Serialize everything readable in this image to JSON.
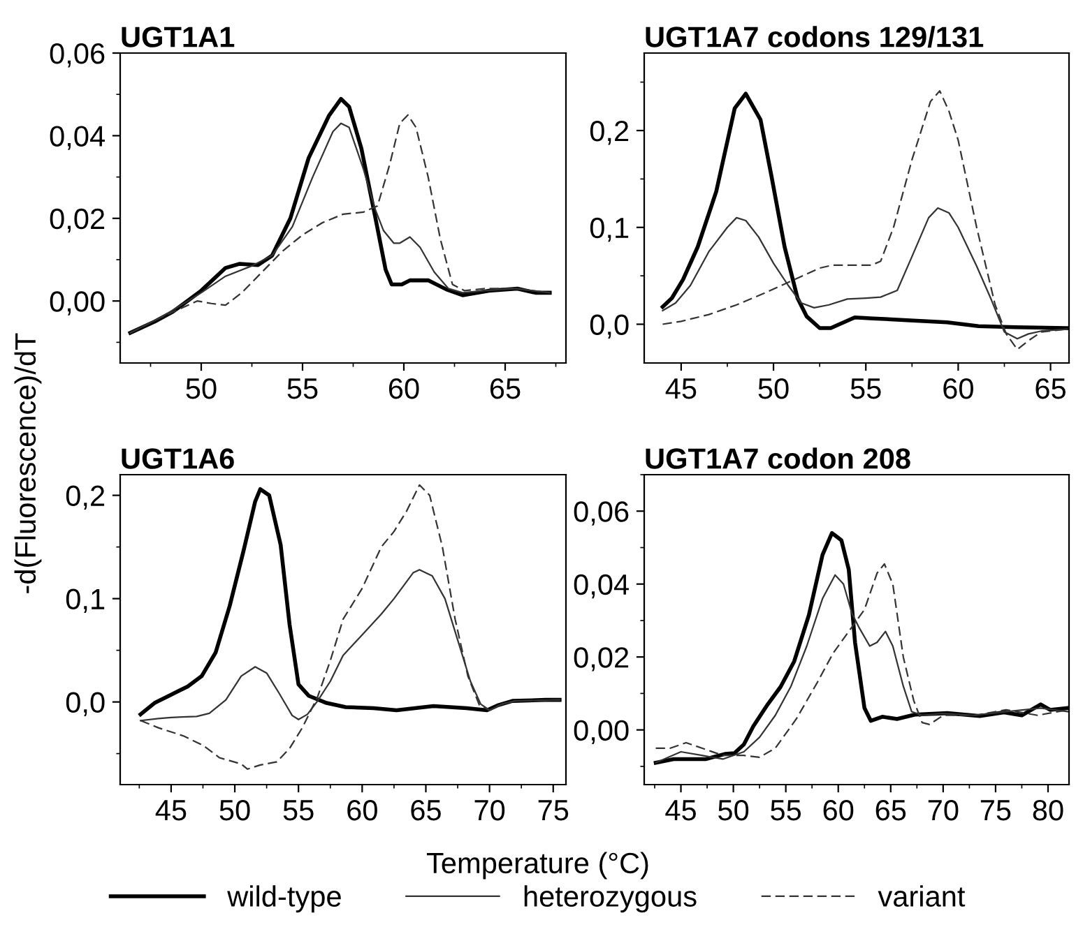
{
  "chart_data": [
    {
      "type": "line",
      "title": "UGT1A1",
      "ylabel": "-d(Fluorescence)/dT",
      "legend": "bottom",
      "grid": false,
      "marker": "none",
      "xlim": [
        46,
        68
      ],
      "xticks": [
        50,
        55,
        60,
        65
      ],
      "ylim": [
        -0.015,
        0.06
      ],
      "yticks": [
        {
          "value": 0,
          "label": "0,00"
        },
        {
          "value": 0.02,
          "label": "0,02"
        },
        {
          "value": 0.04,
          "label": "0,04"
        },
        {
          "value": 0.06,
          "label": "0,06"
        }
      ],
      "series": [
        {
          "name": "wild-type",
          "color": "#000000",
          "line_style": "solid",
          "x": [
            46.5,
            47.7,
            48.6,
            50,
            51.2,
            51.9,
            52.8,
            53.5,
            54.4,
            55.3,
            56.3,
            56.9,
            57.3,
            57.9,
            58.6,
            59.1,
            59.4,
            59.9,
            60.3,
            61.2,
            62.1,
            62.9,
            64.2,
            65.6,
            66.5,
            67.2
          ],
          "values": [
            -0.0077,
            -0.005,
            -0.0026,
            0.0025,
            0.008,
            0.009,
            0.0087,
            0.011,
            0.02,
            0.0346,
            0.0448,
            0.0489,
            0.047,
            0.037,
            0.02,
            0.0076,
            0.004,
            0.004,
            0.005,
            0.005,
            0.0028,
            0.0014,
            0.0025,
            0.003,
            0.002,
            0.002
          ]
        },
        {
          "name": "heterozygous",
          "color": "#333333",
          "line_style": "solid",
          "x": [
            46.5,
            48,
            50,
            51.2,
            52.5,
            53.5,
            54.5,
            55.5,
            56.5,
            56.9,
            57.3,
            58,
            58.6,
            59,
            59.5,
            59.8,
            60.3,
            60.8,
            61.5,
            62.2,
            62.9,
            64,
            65.5,
            67.2
          ],
          "values": [
            -0.0077,
            -0.004,
            0.002,
            0.006,
            0.0085,
            0.011,
            0.018,
            0.03,
            0.041,
            0.043,
            0.042,
            0.032,
            0.022,
            0.017,
            0.014,
            0.014,
            0.0155,
            0.013,
            0.007,
            0.003,
            0.002,
            0.0025,
            0.003,
            0.002
          ]
        },
        {
          "name": "variant",
          "color": "#333333",
          "line_style": "dashed",
          "x": [
            46.5,
            48,
            49.8,
            50.5,
            51.2,
            52,
            53,
            54,
            55,
            56,
            57,
            58,
            58.7,
            59.3,
            59.8,
            60.2,
            60.6,
            61.2,
            61.8,
            62.4,
            63,
            64,
            65.5,
            67.2
          ],
          "values": [
            -0.0077,
            -0.004,
            0,
            -0.0006,
            -0.001,
            0.002,
            0.007,
            0.012,
            0.016,
            0.019,
            0.021,
            0.0215,
            0.023,
            0.033,
            0.043,
            0.045,
            0.042,
            0.03,
            0.015,
            0.004,
            0.0025,
            0.003,
            0.003,
            0.002
          ]
        }
      ]
    },
    {
      "type": "line",
      "title": "UGT1A7 codons 129/131",
      "grid": false,
      "marker": "none",
      "xlim": [
        43,
        66
      ],
      "xticks": [
        45,
        50,
        55,
        60,
        65
      ],
      "ylim": [
        -0.04,
        0.28
      ],
      "yticks": [
        {
          "value": 0,
          "label": "0,0"
        },
        {
          "value": 0.1,
          "label": "0,1"
        },
        {
          "value": 0.2,
          "label": "0,2"
        }
      ],
      "series": [
        {
          "color": "#000000",
          "line_style": "solid",
          "x": [
            44,
            44.5,
            45.1,
            45.9,
            46.9,
            47.9,
            48.5,
            49.3,
            49.9,
            50.6,
            51.3,
            51.8,
            52.5,
            53.1,
            54.4,
            55.4,
            57.4,
            59.4,
            61.1,
            63.1,
            65.9
          ],
          "values": [
            0.018,
            0.027,
            0.046,
            0.08,
            0.137,
            0.223,
            0.238,
            0.211,
            0.152,
            0.08,
            0.027,
            0.008,
            -0.004,
            -0.004,
            0.007,
            0.006,
            0.004,
            0.002,
            -0.002,
            -0.003,
            -0.004
          ]
        },
        {
          "color": "#333333",
          "line_style": "solid",
          "x": [
            44,
            44.7,
            45.5,
            46.5,
            47.5,
            48,
            48.5,
            49.2,
            50,
            50.8,
            51.5,
            52.2,
            53,
            54,
            55,
            55.8,
            56.7,
            57.5,
            58.4,
            58.9,
            59.5,
            60,
            61,
            61.8,
            62.5,
            63.2,
            63.8,
            64.5,
            65.9
          ],
          "values": [
            0.014,
            0.022,
            0.04,
            0.075,
            0.1,
            0.11,
            0.107,
            0.09,
            0.063,
            0.04,
            0.022,
            0.017,
            0.02,
            0.026,
            0.027,
            0.028,
            0.035,
            0.07,
            0.11,
            0.12,
            0.115,
            0.1,
            0.06,
            0.025,
            -0.008,
            -0.015,
            -0.01,
            -0.007,
            -0.005
          ]
        },
        {
          "color": "#333333",
          "line_style": "dashed",
          "x": [
            44,
            45,
            46.5,
            48,
            49.5,
            51,
            52.5,
            53.2,
            54,
            55.3,
            55.8,
            56.5,
            57.5,
            58.5,
            59,
            59.5,
            60,
            61,
            62,
            62.6,
            63.2,
            63.8,
            64.5,
            65.9
          ],
          "values": [
            0,
            0.003,
            0.01,
            0.02,
            0.032,
            0.045,
            0.058,
            0.061,
            0.061,
            0.061,
            0.065,
            0.1,
            0.17,
            0.23,
            0.241,
            0.22,
            0.19,
            0.1,
            0.02,
            -0.01,
            -0.026,
            -0.017,
            -0.008,
            -0.005
          ]
        }
      ]
    },
    {
      "type": "line",
      "title": "UGT1A6",
      "xlabel": "Temperature (°C)",
      "grid": false,
      "marker": "none",
      "xlim": [
        41,
        76
      ],
      "xticks": [
        45,
        50,
        55,
        60,
        65,
        70,
        75
      ],
      "ylim": [
        -0.08,
        0.22
      ],
      "yticks": [
        {
          "value": 0,
          "label": "0,0"
        },
        {
          "value": 0.1,
          "label": "0,1"
        },
        {
          "value": 0.2,
          "label": "0,2"
        }
      ],
      "series": [
        {
          "color": "#000000",
          "line_style": "solid",
          "x": [
            42.6,
            43.7,
            45,
            46.3,
            47.4,
            48.5,
            49.6,
            50.7,
            51.6,
            52,
            52.7,
            53.6,
            54.3,
            55,
            55.8,
            57.2,
            58.7,
            60.9,
            62.7,
            65.6,
            68.2,
            69.8,
            70.7,
            71.8,
            74.4,
            75.5
          ],
          "values": [
            -0.012,
            -0.001,
            0.007,
            0.015,
            0.025,
            0.048,
            0.093,
            0.147,
            0.194,
            0.206,
            0.2,
            0.152,
            0.075,
            0.017,
            0.006,
            -0.001,
            -0.005,
            -0.006,
            -0.008,
            -0.004,
            -0.006,
            -0.008,
            -0.003,
            0.001,
            0.002,
            0.002
          ]
        },
        {
          "color": "#333333",
          "line_style": "solid",
          "x": [
            42.6,
            44,
            45,
            47,
            48,
            49.3,
            50.5,
            51.6,
            52.5,
            53.5,
            54.5,
            55,
            55.7,
            56.5,
            57.5,
            58.5,
            60,
            61.5,
            62.5,
            64,
            64.5,
            65.5,
            66.5,
            67.5,
            68.5,
            69.3,
            70,
            71,
            72,
            75.5
          ],
          "values": [
            -0.018,
            -0.016,
            -0.015,
            -0.014,
            -0.011,
            0.002,
            0.025,
            0.034,
            0.028,
            0.008,
            -0.013,
            -0.017,
            -0.012,
            0.001,
            0.02,
            0.045,
            0.065,
            0.085,
            0.1,
            0.125,
            0.128,
            0.122,
            0.1,
            0.06,
            0.02,
            -0.002,
            -0.008,
            -0.002,
            0.001,
            0.002
          ]
        },
        {
          "color": "#333333",
          "line_style": "dashed",
          "x": [
            42.6,
            44,
            46,
            47.5,
            48.8,
            50.5,
            51,
            52,
            53.3,
            54.3,
            55.3,
            56.5,
            57.5,
            58.5,
            60,
            61.5,
            62.5,
            63.5,
            64.5,
            65.3,
            66.3,
            67.3,
            68.3,
            69.2,
            70,
            71,
            72,
            75.5
          ],
          "values": [
            -0.018,
            -0.025,
            -0.033,
            -0.042,
            -0.054,
            -0.06,
            -0.065,
            -0.061,
            -0.058,
            -0.045,
            -0.025,
            0.005,
            0.04,
            0.08,
            0.11,
            0.15,
            0.165,
            0.185,
            0.21,
            0.2,
            0.15,
            0.08,
            0.025,
            -0.003,
            -0.008,
            -0.002,
            0.001,
            0.002
          ]
        }
      ]
    },
    {
      "type": "line",
      "title": "UGT1A7 codon 208",
      "grid": false,
      "marker": "none",
      "xlim": [
        41.5,
        82
      ],
      "xticks": [
        45,
        50,
        55,
        60,
        65,
        70,
        75,
        80
      ],
      "ylim": [
        -0.015,
        0.07
      ],
      "yticks": [
        {
          "value": 0,
          "label": "0,00"
        },
        {
          "value": 0.02,
          "label": "0,02"
        },
        {
          "value": 0.04,
          "label": "0,04"
        },
        {
          "value": 0.06,
          "label": "0,06"
        }
      ],
      "series": [
        {
          "color": "#000000",
          "line_style": "solid",
          "x": [
            42.6,
            44.3,
            47.4,
            49.2,
            50.1,
            51,
            51.9,
            53.2,
            54.5,
            55.8,
            57.2,
            58.5,
            59.4,
            60.3,
            61,
            61.6,
            62.5,
            63.1,
            64.2,
            65.6,
            67.3,
            70.4,
            73.5,
            75.8,
            77.5,
            79.3,
            80.2,
            81.9
          ],
          "values": [
            -0.009,
            -0.008,
            -0.008,
            -0.0066,
            -0.0064,
            -0.004,
            0.001,
            0.0067,
            0.0118,
            0.0188,
            0.0315,
            0.048,
            0.054,
            0.052,
            0.044,
            0.024,
            0.006,
            0.0025,
            0.0036,
            0.003,
            0.0042,
            0.0046,
            0.0038,
            0.0048,
            0.004,
            0.007,
            0.0055,
            0.006
          ]
        },
        {
          "color": "#333333",
          "line_style": "solid",
          "x": [
            42.6,
            45,
            47,
            49,
            51,
            52.5,
            54,
            55.5,
            57,
            58.5,
            59.7,
            60.5,
            61.3,
            62,
            63,
            63.7,
            64.5,
            65.2,
            66.2,
            67,
            68,
            70,
            73,
            76,
            79.3,
            81.9
          ],
          "values": [
            -0.009,
            -0.006,
            -0.007,
            -0.008,
            -0.006,
            -0.002,
            0.004,
            0.012,
            0.023,
            0.036,
            0.0425,
            0.04,
            0.032,
            0.028,
            0.023,
            0.024,
            0.027,
            0.023,
            0.012,
            0.005,
            0.004,
            0.0045,
            0.004,
            0.005,
            0.006,
            0.005
          ]
        },
        {
          "color": "#333333",
          "line_style": "dashed",
          "x": [
            42.6,
            44,
            45.5,
            47,
            49,
            51,
            52.5,
            54,
            56,
            58,
            59.5,
            61,
            62.5,
            63.7,
            64.4,
            65.2,
            66.2,
            67.2,
            68,
            68.7,
            70,
            73,
            76,
            79,
            81.9
          ],
          "values": [
            -0.005,
            -0.005,
            -0.0035,
            -0.005,
            -0.007,
            -0.007,
            -0.0075,
            -0.005,
            0.003,
            0.013,
            0.021,
            0.027,
            0.033,
            0.043,
            0.0455,
            0.04,
            0.02,
            0.008,
            0.002,
            0.0015,
            0.004,
            0.004,
            0.0055,
            0.004,
            0.0055
          ]
        }
      ]
    }
  ]
}
